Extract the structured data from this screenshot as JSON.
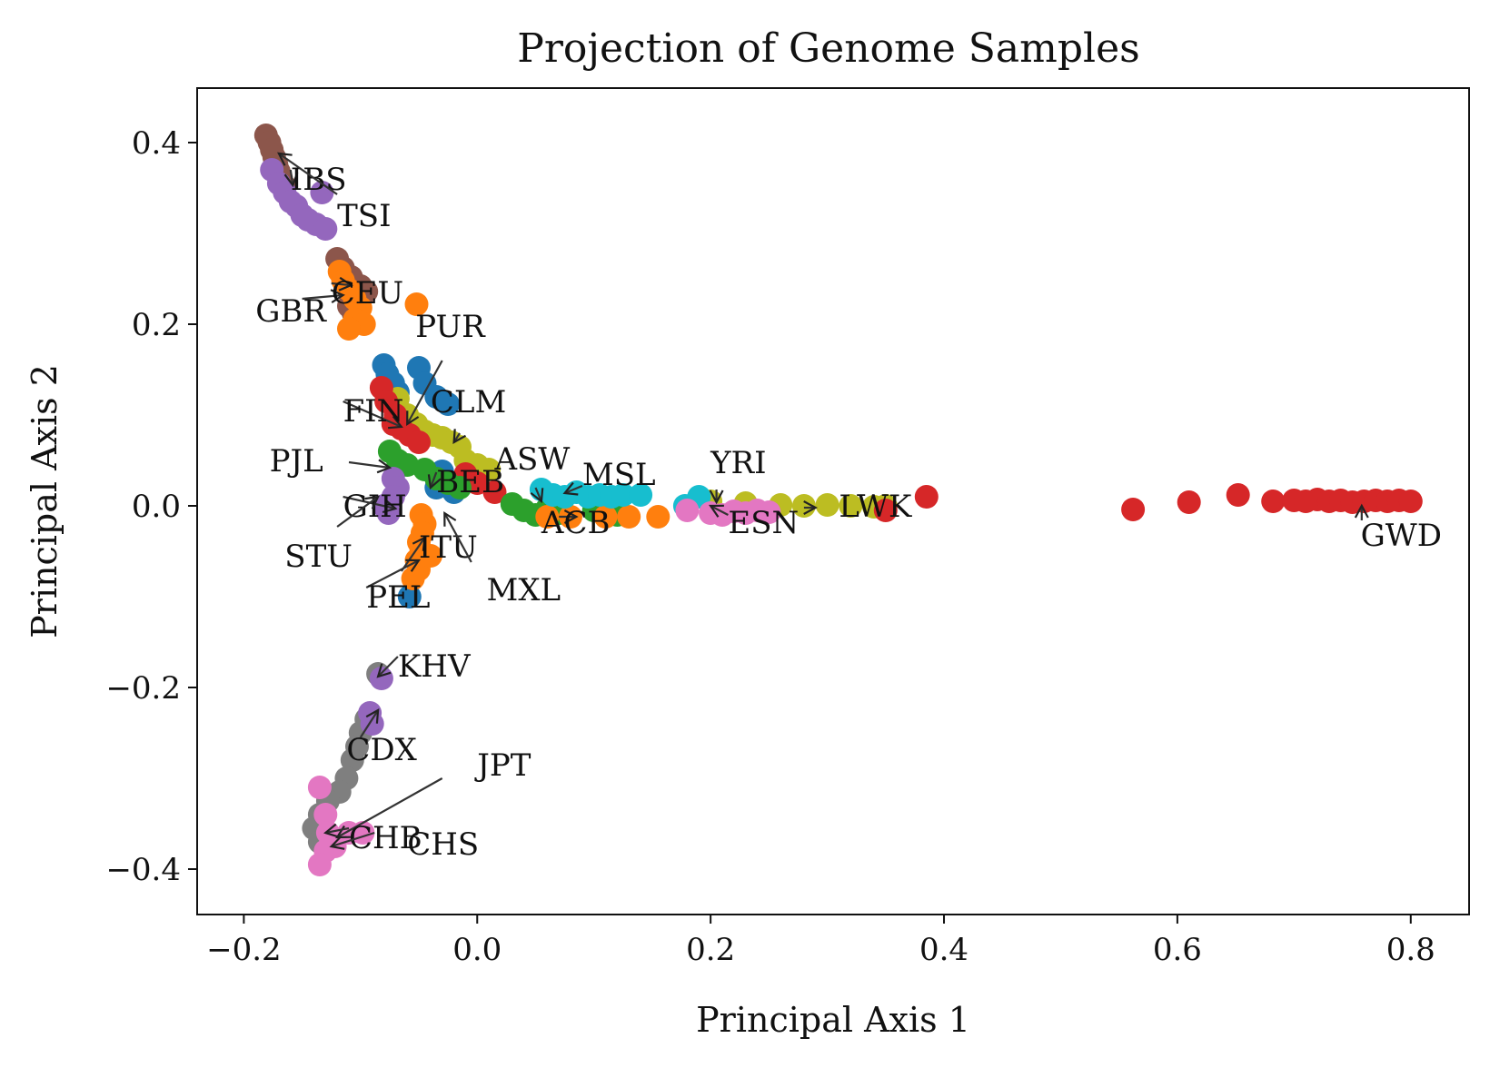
{
  "chart_data": {
    "type": "scatter",
    "title": "Projection of Genome Samples",
    "xlabel": "Principal Axis 1",
    "ylabel": "Principal Axis 2",
    "xlim": [
      -0.24,
      0.85
    ],
    "ylim": [
      -0.45,
      0.46
    ],
    "xticks": [
      -0.2,
      0.0,
      0.2,
      0.4,
      0.6,
      0.8
    ],
    "xtick_labels": [
      "−0.2",
      "0.0",
      "0.2",
      "0.4",
      "0.6",
      "0.8"
    ],
    "yticks": [
      -0.4,
      -0.2,
      0.0,
      0.2,
      0.4
    ],
    "ytick_labels": [
      "−0.4",
      "−0.2",
      "0.0",
      "0.2",
      "0.4"
    ],
    "grid": false,
    "legend": "none",
    "series": [
      {
        "color": "#8c564b",
        "points": [
          [
            -0.181,
            0.408
          ],
          [
            -0.178,
            0.4
          ],
          [
            -0.176,
            0.392
          ],
          [
            -0.174,
            0.384
          ],
          [
            -0.172,
            0.376
          ],
          [
            -0.17,
            0.368
          ],
          [
            -0.168,
            0.36
          ],
          [
            -0.165,
            0.352
          ],
          [
            -0.12,
            0.272
          ],
          [
            -0.115,
            0.262
          ],
          [
            -0.108,
            0.252
          ],
          [
            -0.1,
            0.242
          ],
          [
            -0.095,
            0.236
          ],
          [
            -0.11,
            0.22
          ],
          [
            -0.106,
            0.212
          ]
        ]
      },
      {
        "color": "#9467bd",
        "points": [
          [
            -0.176,
            0.37
          ],
          [
            -0.17,
            0.355
          ],
          [
            -0.165,
            0.345
          ],
          [
            -0.16,
            0.335
          ],
          [
            -0.155,
            0.33
          ],
          [
            -0.15,
            0.32
          ],
          [
            -0.145,
            0.315
          ],
          [
            -0.138,
            0.31
          ],
          [
            -0.13,
            0.305
          ],
          [
            -0.133,
            0.345
          ]
        ]
      },
      {
        "color": "#ff7f0e",
        "points": [
          [
            -0.118,
            0.258
          ],
          [
            -0.115,
            0.248
          ],
          [
            -0.11,
            0.238
          ],
          [
            -0.105,
            0.228
          ],
          [
            -0.1,
            0.218
          ],
          [
            -0.105,
            0.205
          ],
          [
            -0.097,
            0.2
          ],
          [
            -0.11,
            0.195
          ],
          [
            -0.052,
            0.222
          ]
        ]
      },
      {
        "color": "#1f77b4",
        "points": [
          [
            -0.08,
            0.155
          ],
          [
            -0.077,
            0.145
          ],
          [
            -0.072,
            0.135
          ],
          [
            -0.068,
            0.125
          ],
          [
            -0.05,
            0.152
          ],
          [
            -0.045,
            0.135
          ],
          [
            -0.035,
            0.12
          ],
          [
            -0.025,
            0.112
          ],
          [
            -0.03,
            0.038
          ],
          [
            -0.035,
            0.02
          ],
          [
            -0.02,
            0.015
          ],
          [
            -0.058,
            -0.1
          ]
        ]
      },
      {
        "color": "#bcbd22",
        "points": [
          [
            -0.068,
            0.118
          ],
          [
            -0.06,
            0.1
          ],
          [
            -0.052,
            0.09
          ],
          [
            -0.045,
            0.082
          ],
          [
            -0.038,
            0.078
          ],
          [
            -0.03,
            0.075
          ],
          [
            -0.022,
            0.07
          ],
          [
            -0.015,
            0.065
          ],
          [
            -0.01,
            0.05
          ],
          [
            0.0,
            0.045
          ],
          [
            0.01,
            0.04
          ],
          [
            0.2,
            0.005
          ],
          [
            0.23,
            0.003
          ],
          [
            0.26,
            0.001
          ],
          [
            0.28,
            0.0
          ],
          [
            0.3,
            0.001
          ],
          [
            0.32,
            0.0
          ],
          [
            0.34,
            -0.001
          ],
          [
            0.35,
            0.0
          ]
        ]
      },
      {
        "color": "#d62728",
        "points": [
          [
            -0.082,
            0.13
          ],
          [
            -0.078,
            0.115
          ],
          [
            -0.07,
            0.1
          ],
          [
            -0.065,
            0.085
          ],
          [
            -0.058,
            0.078
          ],
          [
            -0.05,
            0.07
          ],
          [
            -0.072,
            0.09
          ],
          [
            -0.01,
            0.035
          ],
          [
            0.0,
            0.025
          ],
          [
            0.015,
            0.015
          ],
          [
            0.35,
            -0.005
          ],
          [
            0.385,
            0.01
          ],
          [
            0.562,
            -0.004
          ],
          [
            0.61,
            0.004
          ],
          [
            0.652,
            0.012
          ],
          [
            0.682,
            0.005
          ],
          [
            0.7,
            0.006
          ],
          [
            0.71,
            0.005
          ],
          [
            0.72,
            0.007
          ],
          [
            0.73,
            0.005
          ],
          [
            0.74,
            0.006
          ],
          [
            0.75,
            0.004
          ],
          [
            0.76,
            0.005
          ],
          [
            0.77,
            0.006
          ],
          [
            0.78,
            0.005
          ],
          [
            0.79,
            0.006
          ],
          [
            0.8,
            0.005
          ]
        ]
      },
      {
        "color": "#2ca02c",
        "points": [
          [
            -0.075,
            0.06
          ],
          [
            -0.068,
            0.05
          ],
          [
            -0.06,
            0.045
          ],
          [
            -0.045,
            0.04
          ],
          [
            -0.035,
            0.03
          ],
          [
            -0.025,
            0.025
          ],
          [
            -0.015,
            0.02
          ],
          [
            0.03,
            0.002
          ],
          [
            0.04,
            -0.005
          ],
          [
            0.05,
            -0.01
          ],
          [
            0.06,
            -0.003
          ],
          [
            0.07,
            -0.008
          ],
          [
            0.1,
            -0.005
          ],
          [
            0.12,
            -0.01
          ]
        ]
      },
      {
        "color": "#9467bd",
        "points": [
          [
            -0.072,
            0.03
          ],
          [
            -0.068,
            0.02
          ],
          [
            -0.072,
            0.01
          ],
          [
            -0.08,
            0.0
          ],
          [
            -0.076,
            -0.008
          ]
        ]
      },
      {
        "color": "#ff7f0e",
        "points": [
          [
            -0.048,
            -0.01
          ],
          [
            -0.045,
            -0.02
          ],
          [
            -0.047,
            -0.03
          ],
          [
            -0.05,
            -0.04
          ],
          [
            -0.048,
            -0.05
          ],
          [
            -0.052,
            -0.06
          ],
          [
            -0.05,
            -0.07
          ],
          [
            -0.055,
            -0.08
          ],
          [
            -0.04,
            -0.055
          ],
          [
            0.06,
            -0.012
          ],
          [
            0.08,
            -0.012
          ],
          [
            0.11,
            -0.012
          ],
          [
            0.13,
            -0.012
          ],
          [
            0.155,
            -0.012
          ]
        ]
      },
      {
        "color": "#17becf",
        "points": [
          [
            0.055,
            0.018
          ],
          [
            0.065,
            0.012
          ],
          [
            0.075,
            0.01
          ],
          [
            0.085,
            0.015
          ],
          [
            0.095,
            0.01
          ],
          [
            0.105,
            0.012
          ],
          [
            0.115,
            0.01
          ],
          [
            0.125,
            0.012
          ],
          [
            0.14,
            0.012
          ],
          [
            0.178,
            0.0
          ],
          [
            0.19,
            0.01
          ]
        ]
      },
      {
        "color": "#e377c2",
        "points": [
          [
            0.18,
            -0.005
          ],
          [
            0.2,
            -0.008
          ],
          [
            0.21,
            -0.01
          ],
          [
            0.22,
            -0.006
          ],
          [
            0.23,
            -0.008
          ],
          [
            0.24,
            -0.005
          ],
          [
            0.25,
            -0.007
          ]
        ]
      },
      {
        "color": "#7f7f7f",
        "points": [
          [
            -0.085,
            -0.185
          ],
          [
            -0.095,
            -0.235
          ],
          [
            -0.1,
            -0.25
          ],
          [
            -0.103,
            -0.265
          ],
          [
            -0.107,
            -0.28
          ],
          [
            -0.112,
            -0.3
          ],
          [
            -0.118,
            -0.315
          ],
          [
            -0.128,
            -0.325
          ],
          [
            -0.135,
            -0.34
          ],
          [
            -0.14,
            -0.355
          ],
          [
            -0.135,
            -0.37
          ]
        ]
      },
      {
        "color": "#9467bd",
        "points": [
          [
            -0.082,
            -0.19
          ],
          [
            -0.092,
            -0.228
          ],
          [
            -0.09,
            -0.24
          ]
        ]
      },
      {
        "color": "#e377c2",
        "points": [
          [
            -0.135,
            -0.31
          ],
          [
            -0.13,
            -0.34
          ],
          [
            -0.128,
            -0.36
          ],
          [
            -0.13,
            -0.38
          ],
          [
            -0.135,
            -0.395
          ],
          [
            -0.122,
            -0.375
          ],
          [
            -0.11,
            -0.36
          ],
          [
            -0.098,
            -0.36
          ]
        ]
      }
    ],
    "annotations": [
      {
        "text": "IBS",
        "text_at": [
          -0.16,
          0.36
        ],
        "arrow_to": [
          -0.158,
          0.353
        ]
      },
      {
        "text": "TSI",
        "text_at": [
          -0.12,
          0.32
        ],
        "arrow_from": [
          -0.12,
          0.343
        ],
        "arrow_to": [
          -0.17,
          0.388
        ]
      },
      {
        "text": "GBR",
        "text_at": [
          -0.19,
          0.215
        ],
        "arrow_from": [
          -0.15,
          0.228
        ],
        "arrow_to": [
          -0.115,
          0.232
        ]
      },
      {
        "text": "CEU",
        "text_at": [
          -0.125,
          0.235
        ],
        "arrow_to": [
          -0.108,
          0.243
        ]
      },
      {
        "text": "PUR",
        "text_at": [
          -0.053,
          0.198
        ],
        "arrow_from": [
          -0.03,
          0.16
        ],
        "arrow_to": [
          -0.06,
          0.09
        ]
      },
      {
        "text": "FIN",
        "text_at": [
          -0.115,
          0.105
        ],
        "arrow_to": [
          -0.065,
          0.087
        ]
      },
      {
        "text": "CLM",
        "text_at": [
          -0.04,
          0.115
        ],
        "arrow_from": [
          -0.015,
          0.08
        ],
        "arrow_to": [
          -0.02,
          0.07
        ]
      },
      {
        "text": "PJL",
        "text_at": [
          -0.178,
          0.05
        ],
        "arrow_from": [
          -0.11,
          0.048
        ],
        "arrow_to": [
          -0.075,
          0.042
        ]
      },
      {
        "text": "ASW",
        "text_at": [
          0.015,
          0.052
        ],
        "arrow_from": [
          0.05,
          0.02
        ],
        "arrow_to": [
          0.055,
          0.005
        ]
      },
      {
        "text": "MSL",
        "text_at": [
          0.09,
          0.035
        ],
        "arrow_from": [
          0.09,
          0.022
        ],
        "arrow_to": [
          0.075,
          0.014
        ]
      },
      {
        "text": "YRI",
        "text_at": [
          0.2,
          0.048
        ],
        "arrow_from": [
          0.205,
          0.018
        ],
        "arrow_to": [
          0.205,
          0.004
        ]
      },
      {
        "text": "BEB",
        "text_at": [
          -0.035,
          0.027
        ],
        "arrow_to": [
          -0.04,
          0.02
        ]
      },
      {
        "text": "GIH",
        "text_at": [
          -0.115,
          0.0
        ],
        "arrow_to": [
          -0.07,
          -0.003
        ]
      },
      {
        "text": "STU",
        "text_at": [
          -0.165,
          -0.055
        ],
        "arrow_from": [
          -0.12,
          -0.023
        ],
        "arrow_to": [
          -0.085,
          0.01
        ]
      },
      {
        "text": "ACB",
        "text_at": [
          0.055,
          -0.018
        ],
        "arrow_from": [
          0.07,
          -0.012
        ],
        "arrow_to": [
          0.085,
          -0.012
        ]
      },
      {
        "text": "ESN",
        "text_at": [
          0.215,
          -0.018
        ],
        "arrow_from": [
          0.215,
          -0.01
        ],
        "arrow_to": [
          0.2,
          0.0
        ]
      },
      {
        "text": "LWK",
        "text_at": [
          0.31,
          0.0
        ],
        "arrow_from": [
          0.28,
          -0.002
        ],
        "arrow_to": [
          0.29,
          -0.002
        ]
      },
      {
        "text": "GWD",
        "text_at": [
          0.757,
          -0.032
        ],
        "arrow_from": [
          0.758,
          -0.016
        ],
        "arrow_to": [
          0.758,
          0.0
        ]
      },
      {
        "text": "ITU",
        "text_at": [
          -0.05,
          -0.045
        ],
        "arrow_from": [
          -0.065,
          -0.072
        ],
        "arrow_to": [
          -0.045,
          -0.035
        ]
      },
      {
        "text": "PEL",
        "text_at": [
          -0.095,
          -0.1
        ],
        "arrow_to": [
          -0.05,
          -0.06
        ]
      },
      {
        "text": "MXL",
        "text_at": [
          0.008,
          -0.092
        ],
        "arrow_from": [
          -0.005,
          -0.062
        ],
        "arrow_to": [
          -0.028,
          -0.008
        ]
      },
      {
        "text": "KHV",
        "text_at": [
          -0.068,
          -0.176
        ],
        "arrow_to": [
          -0.085,
          -0.188
        ]
      },
      {
        "text": "CDX",
        "text_at": [
          -0.112,
          -0.268
        ],
        "arrow_from": [
          -0.1,
          -0.255
        ],
        "arrow_to": [
          -0.085,
          -0.225
        ]
      },
      {
        "text": "JPT",
        "text_at": [
          0.0,
          -0.285
        ],
        "arrow_from": [
          -0.03,
          -0.3
        ],
        "arrow_to": [
          -0.12,
          -0.365
        ]
      },
      {
        "text": "CHB",
        "text_at": [
          -0.11,
          -0.365
        ],
        "arrow_to": [
          -0.13,
          -0.36
        ]
      },
      {
        "text": "CHS",
        "text_at": [
          -0.06,
          -0.372
        ],
        "arrow_from": [
          -0.088,
          -0.36
        ],
        "arrow_to": [
          -0.125,
          -0.375
        ]
      }
    ]
  }
}
